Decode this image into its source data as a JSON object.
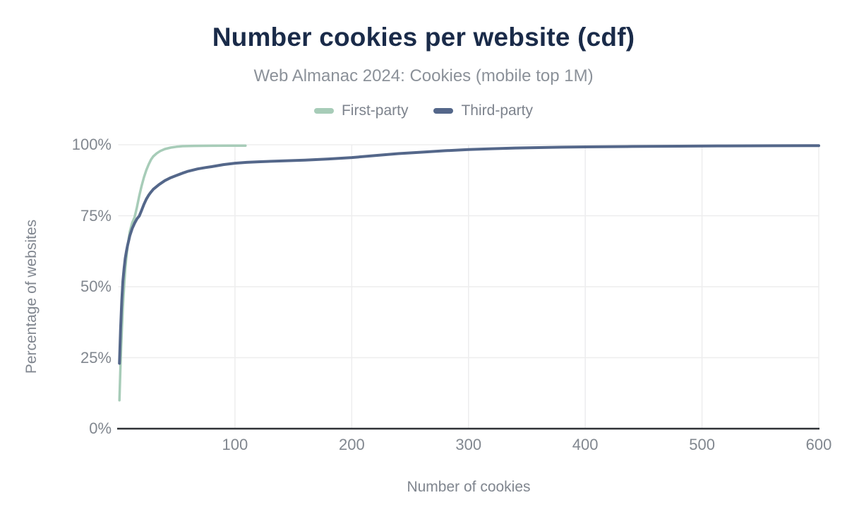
{
  "colors": {
    "title": "#1a2b49",
    "axis_line": "#2f3237",
    "gridline": "#ededee",
    "tick_text": "#81878f",
    "subtitle_text": "#8b9199",
    "background": "#ffffff"
  },
  "chart_data": {
    "type": "line",
    "title": "Number cookies per website (cdf)",
    "subtitle": "Web Almanac 2024: Cookies (mobile top 1M)",
    "xlabel": "Number of cookies",
    "ylabel": "Percentage of websites",
    "xlim": [
      0,
      600
    ],
    "ylim": [
      0,
      100
    ],
    "grid": true,
    "legend_position": "top",
    "x_ticks": [
      {
        "value": 100,
        "label": "100"
      },
      {
        "value": 200,
        "label": "200"
      },
      {
        "value": 300,
        "label": "300"
      },
      {
        "value": 400,
        "label": "400"
      },
      {
        "value": 500,
        "label": "500"
      },
      {
        "value": 600,
        "label": "600"
      }
    ],
    "y_ticks": [
      {
        "value": 0,
        "label": "0%"
      },
      {
        "value": 25,
        "label": "25%"
      },
      {
        "value": 50,
        "label": "50%"
      },
      {
        "value": 75,
        "label": "75%"
      },
      {
        "value": 100,
        "label": "100%"
      }
    ],
    "series": [
      {
        "name": "First-party",
        "color": "#a7ccb8",
        "line_width": 3.5,
        "points": [
          [
            1,
            10
          ],
          [
            2,
            23
          ],
          [
            3,
            34
          ],
          [
            4,
            43
          ],
          [
            5,
            50
          ],
          [
            6,
            56
          ],
          [
            7,
            60.5
          ],
          [
            8,
            64
          ],
          [
            9,
            67
          ],
          [
            10,
            69.5
          ],
          [
            12,
            72.5
          ],
          [
            14,
            74.5
          ],
          [
            16,
            78
          ],
          [
            18,
            82
          ],
          [
            20,
            85.5
          ],
          [
            22,
            88.5
          ],
          [
            24,
            91
          ],
          [
            26,
            93
          ],
          [
            28,
            94.7
          ],
          [
            30,
            95.9
          ],
          [
            33,
            97
          ],
          [
            36,
            97.8
          ],
          [
            40,
            98.5
          ],
          [
            45,
            99
          ],
          [
            50,
            99.3
          ],
          [
            55,
            99.5
          ],
          [
            65,
            99.6
          ],
          [
            80,
            99.65
          ],
          [
            95,
            99.7
          ],
          [
            109,
            99.7
          ]
        ]
      },
      {
        "name": "Third-party",
        "color": "#54678a",
        "line_width": 4,
        "points": [
          [
            1,
            23
          ],
          [
            2,
            35
          ],
          [
            3,
            45
          ],
          [
            4,
            52
          ],
          [
            5,
            56.5
          ],
          [
            6,
            60
          ],
          [
            7,
            62.5
          ],
          [
            8,
            64.5
          ],
          [
            9,
            66.3
          ],
          [
            10,
            68
          ],
          [
            12,
            70.5
          ],
          [
            14,
            72.4
          ],
          [
            16,
            73.9
          ],
          [
            18,
            74.9
          ],
          [
            20,
            76.9
          ],
          [
            22,
            79
          ],
          [
            24,
            80.8
          ],
          [
            26,
            82.2
          ],
          [
            28,
            83.3
          ],
          [
            30,
            84.3
          ],
          [
            35,
            86
          ],
          [
            40,
            87.4
          ],
          [
            45,
            88.4
          ],
          [
            50,
            89.2
          ],
          [
            55,
            90
          ],
          [
            60,
            90.7
          ],
          [
            68,
            91.5
          ],
          [
            75,
            92
          ],
          [
            80,
            92.3
          ],
          [
            90,
            93
          ],
          [
            100,
            93.5
          ],
          [
            110,
            93.8
          ],
          [
            120,
            94
          ],
          [
            140,
            94.3
          ],
          [
            160,
            94.6
          ],
          [
            180,
            95
          ],
          [
            200,
            95.5
          ],
          [
            220,
            96.2
          ],
          [
            240,
            96.9
          ],
          [
            260,
            97.4
          ],
          [
            280,
            97.9
          ],
          [
            300,
            98.3
          ],
          [
            320,
            98.6
          ],
          [
            340,
            98.85
          ],
          [
            360,
            99.0
          ],
          [
            380,
            99.15
          ],
          [
            400,
            99.25
          ],
          [
            440,
            99.4
          ],
          [
            480,
            99.5
          ],
          [
            520,
            99.6
          ],
          [
            560,
            99.65
          ],
          [
            600,
            99.7
          ]
        ]
      }
    ]
  }
}
